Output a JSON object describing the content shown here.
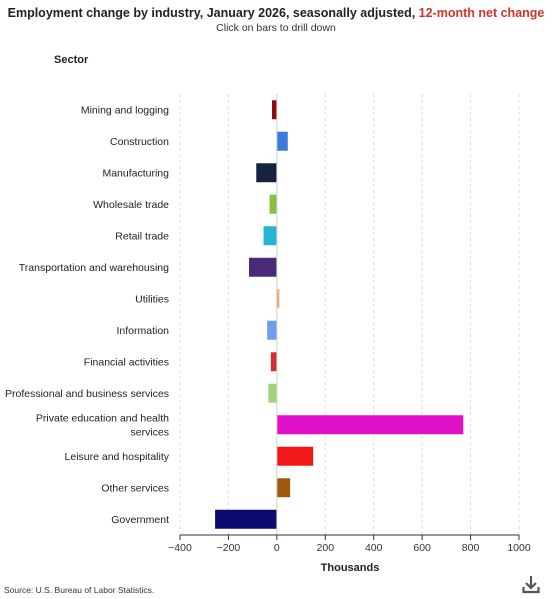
{
  "header": {
    "title_main": "Employment change by industry, January 2026, seasonally adjusted, ",
    "title_accent": "12-month net change",
    "subtitle": "Click on bars to drill down"
  },
  "axis": {
    "category_title": "Sector",
    "value_title": "Thousands"
  },
  "footer": {
    "source": "Source: U.S. Bureau of Labor Statistics."
  },
  "icons": {
    "download": "download-icon"
  },
  "chart_data": {
    "type": "bar",
    "orientation": "horizontal",
    "title": "Employment change by industry, January 2026, seasonally adjusted, 12-month net change",
    "subtitle": "Click on bars to drill down",
    "xlabel": "Thousands",
    "ylabel": "Sector",
    "xlim": [
      -400,
      1000
    ],
    "xticks": [
      -400,
      -200,
      0,
      200,
      400,
      600,
      800,
      1000
    ],
    "xtick_labels": [
      "−400",
      "−200",
      "0",
      "200",
      "400",
      "600",
      "800",
      "1000"
    ],
    "grid": "vertical dashed",
    "legend": "none",
    "categories": [
      [
        "Mining and logging"
      ],
      [
        "Construction"
      ],
      [
        "Manufacturing"
      ],
      [
        "Wholesale trade"
      ],
      [
        "Retail trade"
      ],
      [
        "Transportation and warehousing"
      ],
      [
        "Utilities"
      ],
      [
        "Information"
      ],
      [
        "Financial activities"
      ],
      [
        "Professional and business services"
      ],
      [
        "Private education and health",
        "services"
      ],
      [
        "Leisure and hospitality"
      ],
      [
        "Other services"
      ],
      [
        "Government"
      ]
    ],
    "values": [
      -20,
      45,
      -85,
      -30,
      -55,
      -115,
      10,
      -40,
      -25,
      -35,
      770,
      150,
      55,
      -255
    ],
    "colors": [
      "#8b0a14",
      "#3a7ad8",
      "#14233f",
      "#86c03c",
      "#27b4d4",
      "#4a2a78",
      "#f4a45c",
      "#6f9ee8",
      "#d33035",
      "#a2d47c",
      "#e010c8",
      "#f01818",
      "#a0580c",
      "#0c0c70"
    ]
  }
}
